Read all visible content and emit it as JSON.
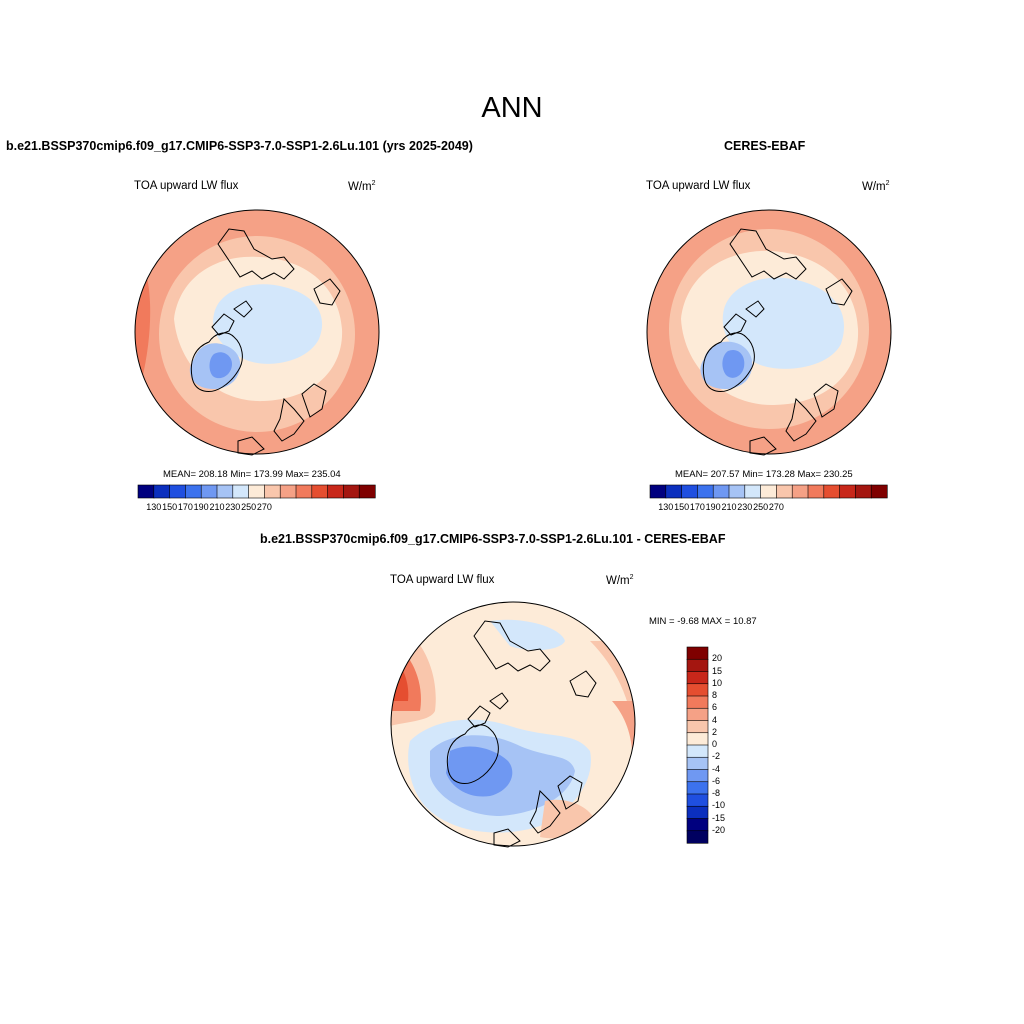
{
  "figure": {
    "title": "ANN"
  },
  "panels": [
    {
      "id": "model",
      "title": "b.e21.BSSP370cmip6.f09_g17.CMIP6-SSP3-7.0-SSP1-2.6Lu.101 (yrs 2025-2049)",
      "variable": "TOA upward LW flux",
      "units_base": "W/m",
      "units_exp": "2",
      "stats_text": "MEAN= 208.18  Min= 173.99  Max= 235.04",
      "stats": {
        "mean": 208.18,
        "min": 173.99,
        "max": 235.04
      },
      "colorbar_labels": [
        "130",
        "150",
        "170",
        "190",
        "210",
        "230",
        "250",
        "270"
      ]
    },
    {
      "id": "obs",
      "title": "CERES-EBAF",
      "variable": "TOA upward LW flux",
      "units_base": "W/m",
      "units_exp": "2",
      "stats_text": "MEAN= 207.57  Min= 173.28  Max= 230.25",
      "stats": {
        "mean": 207.57,
        "min": 173.28,
        "max": 230.25
      },
      "colorbar_labels": [
        "130",
        "150",
        "170",
        "190",
        "210",
        "230",
        "250",
        "270"
      ]
    },
    {
      "id": "diff",
      "title": "b.e21.BSSP370cmip6.f09_g17.CMIP6-SSP3-7.0-SSP1-2.6Lu.101 - CERES-EBAF",
      "variable": "TOA upward LW flux",
      "units_base": "W/m",
      "units_exp": "2",
      "stats_text": "MIN =  -9.68 MAX =  10.87",
      "stats": {
        "min": -9.68,
        "max": 10.87
      },
      "colorbar_labels": [
        "20",
        "15",
        "10",
        "8",
        "6",
        "4",
        "2",
        "0",
        "-2",
        "-4",
        "-6",
        "-8",
        "-10",
        "-15",
        "-20"
      ]
    }
  ],
  "colors": {
    "abs_scale": [
      "#00007f",
      "#0b2fbe",
      "#1f4fe0",
      "#3c72ee",
      "#6f98f2",
      "#a6c3f5",
      "#d3e7fb",
      "#fdebd8",
      "#f9c6ac",
      "#f5a186",
      "#f17a5c",
      "#e54e30",
      "#c8271a",
      "#a41610",
      "#7f0000"
    ],
    "diff_scale": [
      "#7f0000",
      "#a41610",
      "#c8271a",
      "#e54e30",
      "#f17a5c",
      "#f5a186",
      "#f9c6ac",
      "#fdebd8",
      "#d3e7fb",
      "#a6c3f5",
      "#6f98f2",
      "#3c72ee",
      "#1f4fe0",
      "#0b2fbe",
      "#00007f",
      "#000060"
    ]
  }
}
